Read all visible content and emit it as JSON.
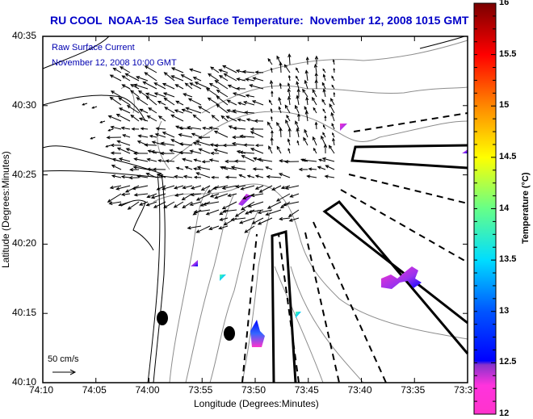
{
  "title": "RU COOL  NOAA-15  Sea Surface Temperature:  November 12, 2008 1015 GMT",
  "overlay": {
    "line1": "Raw Surface Current",
    "line2": "November 12, 2008 10:00 GMT"
  },
  "scale_arrow": {
    "label": "50 cm/s"
  },
  "chart_data": {
    "type": "heatmap",
    "title": "RU COOL  NOAA-15  Sea Surface Temperature:  November 12, 2008 1015 GMT",
    "xlabel": "Longitude (Degrees:Minutes)",
    "ylabel": "Latitude (Degrees:Minutes)",
    "x_ticks": [
      "74:10",
      "74:05",
      "74:00",
      "73:55",
      "73:50",
      "73:45",
      "73:40",
      "73:35",
      "73:3"
    ],
    "y_ticks": [
      "40:35",
      "40:30",
      "40:25",
      "40:20",
      "40:15",
      "40:10"
    ],
    "colorbar": {
      "label": "Temperature (°C)",
      "range": [
        12,
        16
      ],
      "ticks": [
        "16",
        "15.5",
        "15",
        "14.5",
        "14",
        "13.5",
        "13",
        "12.5",
        "12"
      ],
      "colors": [
        "#ff33cc",
        "#cc33ff",
        "#6633cc",
        "#0000ff",
        "#0066ff",
        "#00ccff",
        "#00ffee",
        "#66ff99",
        "#ccff33",
        "#ffff00",
        "#ffcc00",
        "#ff9900",
        "#ff5500",
        "#ff0000",
        "#cc0000",
        "#800000"
      ]
    },
    "sst_patches_celsius": [
      12.3,
      12.4,
      12.6,
      12.2,
      13.2,
      12.5,
      12.3,
      12.4
    ],
    "current_vector_scale_cm_s": 50
  },
  "colors": {
    "title": "#0000c8",
    "overlay_text": "#0000b0",
    "coast": "#000000",
    "bathymetry": "#8c8c8c"
  }
}
